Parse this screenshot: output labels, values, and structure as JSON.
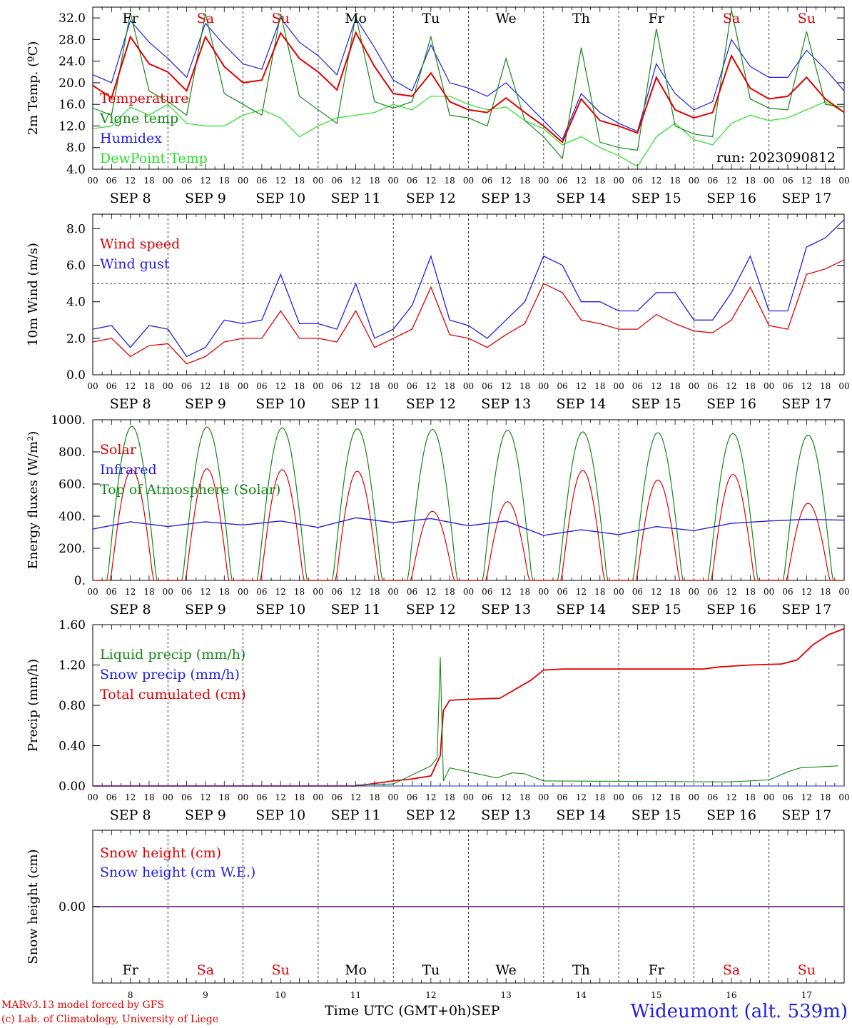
{
  "footer": {
    "model": "MARv3.13 model forced by GFS",
    "credit": "(c) Lab. of Climatology, University of Liege",
    "time_label": "Time UTC (GMT+0h)",
    "month": "SEP",
    "station": "Wideumont (alt. 539m)"
  },
  "colors": {
    "red": "#e00000",
    "green": "#138a13",
    "blue": "#1f1fe6",
    "lightgreen": "#22e022",
    "purple": "#7a2a9a"
  },
  "days": {
    "weekday": [
      "Fr",
      "Sa",
      "Su",
      "Mo",
      "Tu",
      "We",
      "Th",
      "Fr",
      "Sa",
      "Su"
    ],
    "weekend": [
      false,
      true,
      true,
      false,
      false,
      false,
      false,
      false,
      true,
      true
    ],
    "date_labels": [
      "SEP  8",
      "SEP  9",
      "SEP 10",
      "SEP 11",
      "SEP 12",
      "SEP 13",
      "SEP 14",
      "SEP 15",
      "SEP 16",
      "SEP 17"
    ],
    "day_numbers": [
      "8",
      "9",
      "10",
      "11",
      "12",
      "13",
      "14",
      "15",
      "16",
      "17"
    ],
    "hour_ticks": [
      "00",
      "06",
      "12",
      "18"
    ]
  },
  "chart_data": [
    {
      "type": "line",
      "panel": "temperature",
      "ylabel": "2m Temp. (ºC)",
      "ylim": [
        4,
        34
      ],
      "yticks": [
        "4.0",
        "8.0",
        "12.0",
        "16.0",
        "20.0",
        "24.0",
        "28.0",
        "32.0"
      ],
      "run_label": "run: 2023090812",
      "x_unit": "hours since 2023-09-08 00 UTC",
      "series": [
        {
          "name": "Temperature",
          "color": "#e00000",
          "x": [
            0,
            6,
            12,
            18,
            24,
            30,
            36,
            42,
            48,
            54,
            60,
            66,
            72,
            78,
            84,
            90,
            96,
            102,
            108,
            114,
            120,
            126,
            132,
            138,
            144,
            150,
            156,
            162,
            168,
            174,
            180,
            186,
            192,
            198,
            204,
            210,
            216,
            222,
            228,
            234,
            240
          ],
          "values": [
            19.5,
            17.2,
            28.5,
            23.5,
            22.0,
            18.5,
            28.5,
            23.0,
            20.0,
            20.5,
            29.2,
            24.5,
            22.0,
            18.7,
            29.3,
            23.0,
            18.0,
            17.5,
            21.8,
            16.5,
            15.0,
            14.5,
            17.2,
            14.5,
            12.0,
            9.0,
            17.0,
            13.0,
            12.0,
            10.7,
            21.0,
            15.0,
            13.5,
            14.5,
            25.0,
            19.0,
            17.0,
            17.5,
            21.0,
            17.0,
            14.5
          ]
        },
        {
          "name": "Vigne temp",
          "color": "#138a13",
          "x": [
            0,
            6,
            12,
            18,
            24,
            30,
            36,
            42,
            48,
            54,
            60,
            66,
            72,
            78,
            84,
            90,
            96,
            102,
            108,
            114,
            120,
            126,
            132,
            138,
            144,
            150,
            156,
            162,
            168,
            174,
            180,
            186,
            192,
            198,
            204,
            210,
            216,
            222,
            228,
            234,
            240
          ],
          "values": [
            15.3,
            14.0,
            33.0,
            18.5,
            16.5,
            14.0,
            32.8,
            18.0,
            16.0,
            14.0,
            32.8,
            17.5,
            15.0,
            12.5,
            32.5,
            16.5,
            15.3,
            16.5,
            28.5,
            14.0,
            13.5,
            12.0,
            24.5,
            13.0,
            10.0,
            6.0,
            26.5,
            9.0,
            8.0,
            7.5,
            30.0,
            12.0,
            10.5,
            10.0,
            33.5,
            17.0,
            15.3,
            15.0,
            29.5,
            16.0,
            15.5
          ]
        },
        {
          "name": "Humidex",
          "color": "#1f1fe6",
          "x": [
            0,
            6,
            12,
            18,
            24,
            30,
            36,
            42,
            48,
            54,
            60,
            66,
            72,
            78,
            84,
            90,
            96,
            102,
            108,
            114,
            120,
            126,
            132,
            138,
            144,
            150,
            156,
            162,
            168,
            174,
            180,
            186,
            192,
            198,
            204,
            210,
            216,
            222,
            228,
            234,
            240
          ],
          "values": [
            21.5,
            20.0,
            31.5,
            27.5,
            24.5,
            21.0,
            31.0,
            27.0,
            23.5,
            22.5,
            32.0,
            27.5,
            25.0,
            21.5,
            32.0,
            26.5,
            20.5,
            18.5,
            27.0,
            20.0,
            19.0,
            17.5,
            20.0,
            16.5,
            13.0,
            9.5,
            18.0,
            14.5,
            12.5,
            11.0,
            23.5,
            18.0,
            15.0,
            16.5,
            28.0,
            23.0,
            21.0,
            21.0,
            26.0,
            22.5,
            18.5
          ]
        },
        {
          "name": "DewPoint Temp",
          "color": "#22e022",
          "x": [
            0,
            6,
            12,
            18,
            24,
            30,
            36,
            42,
            48,
            54,
            60,
            66,
            72,
            78,
            84,
            90,
            96,
            102,
            108,
            114,
            120,
            126,
            132,
            138,
            144,
            150,
            156,
            162,
            168,
            174,
            180,
            186,
            192,
            198,
            204,
            210,
            216,
            222,
            228,
            234,
            240
          ],
          "values": [
            11.5,
            12.0,
            15.5,
            14.0,
            16.0,
            12.5,
            12.0,
            12.0,
            14.0,
            15.0,
            13.5,
            10.0,
            12.0,
            13.5,
            14.0,
            14.5,
            16.0,
            15.0,
            17.5,
            17.5,
            16.0,
            15.0,
            15.5,
            13.0,
            11.5,
            8.5,
            10.0,
            8.0,
            6.5,
            4.5,
            10.0,
            12.5,
            9.5,
            8.5,
            12.5,
            14.0,
            13.0,
            13.5,
            15.0,
            16.5,
            14.5
          ]
        }
      ]
    },
    {
      "type": "line",
      "panel": "wind",
      "ylabel": "10m Wind (m/s)",
      "ylim": [
        0,
        8.8
      ],
      "yticks": [
        "0.0",
        "2.0",
        "4.0",
        "6.0",
        "8.0"
      ],
      "reference_line": 5.0,
      "series": [
        {
          "name": "Wind speed",
          "color": "#e00000",
          "x": [
            0,
            6,
            12,
            18,
            24,
            30,
            36,
            42,
            48,
            54,
            60,
            66,
            72,
            78,
            84,
            90,
            96,
            102,
            108,
            114,
            120,
            126,
            132,
            138,
            144,
            150,
            156,
            162,
            168,
            174,
            180,
            186,
            192,
            198,
            204,
            210,
            216,
            222,
            228,
            234,
            240
          ],
          "values": [
            1.8,
            2.0,
            1.0,
            1.6,
            1.7,
            0.6,
            1.0,
            1.8,
            2.0,
            2.0,
            3.5,
            2.0,
            2.0,
            1.8,
            3.5,
            1.5,
            2.0,
            2.5,
            4.8,
            2.2,
            2.0,
            1.5,
            2.2,
            2.8,
            5.0,
            4.5,
            3.0,
            2.8,
            2.5,
            2.5,
            3.3,
            2.8,
            2.4,
            2.3,
            3.0,
            4.8,
            2.7,
            2.5,
            5.5,
            5.8,
            6.3
          ]
        },
        {
          "name": "Wind gust",
          "color": "#1f1fe6",
          "x": [
            0,
            6,
            12,
            18,
            24,
            30,
            36,
            42,
            48,
            54,
            60,
            66,
            72,
            78,
            84,
            90,
            96,
            102,
            108,
            114,
            120,
            126,
            132,
            138,
            144,
            150,
            156,
            162,
            168,
            174,
            180,
            186,
            192,
            198,
            204,
            210,
            216,
            222,
            228,
            234,
            240
          ],
          "values": [
            2.5,
            2.7,
            1.5,
            2.7,
            2.5,
            1.0,
            1.5,
            3.0,
            2.8,
            3.0,
            5.5,
            2.8,
            2.8,
            2.5,
            5.0,
            2.0,
            2.5,
            3.8,
            6.5,
            3.0,
            2.7,
            2.0,
            3.0,
            4.0,
            6.5,
            6.0,
            4.0,
            4.0,
            3.5,
            3.5,
            4.5,
            4.5,
            3.0,
            3.0,
            4.5,
            6.5,
            3.5,
            3.5,
            7.0,
            7.5,
            8.5
          ]
        }
      ]
    },
    {
      "type": "line",
      "panel": "energy",
      "ylabel": "Energy fluxes (W/m²)",
      "ylim": [
        0,
        1000
      ],
      "yticks": [
        "0.",
        "200.",
        "400.",
        "600.",
        "800.",
        "1000."
      ],
      "series": [
        {
          "name": "Solar",
          "color": "#e00000",
          "daily_peak": [
            690,
            695,
            690,
            680,
            430,
            490,
            685,
            625,
            660,
            480
          ]
        },
        {
          "name": "Infrared",
          "color": "#1f1fe6",
          "x": [
            0,
            12,
            24,
            36,
            48,
            60,
            72,
            84,
            96,
            108,
            120,
            132,
            144,
            156,
            168,
            180,
            192,
            204,
            216,
            228,
            240
          ],
          "values": [
            320,
            365,
            335,
            365,
            345,
            370,
            330,
            390,
            360,
            385,
            340,
            370,
            280,
            315,
            285,
            335,
            310,
            355,
            370,
            380,
            375
          ]
        },
        {
          "name": "Top of Atmosphere (Solar)",
          "color": "#138a13",
          "daily_peak": [
            960,
            955,
            950,
            945,
            940,
            935,
            925,
            920,
            915,
            905
          ]
        }
      ]
    },
    {
      "type": "line",
      "panel": "precip",
      "ylabel": "Precip (mm/h)",
      "ylim": [
        0,
        1.6
      ],
      "yticks": [
        "0.00",
        "0.40",
        "0.80",
        "1.20",
        "1.60"
      ],
      "series": [
        {
          "name": "Liquid precip (mm/h)",
          "color": "#138a13",
          "x": [
            84,
            96,
            108,
            110,
            111,
            112,
            114,
            129,
            134,
            138,
            144,
            203,
            216,
            222,
            226,
            238
          ],
          "values": [
            0.01,
            0.02,
            0.2,
            0.28,
            1.28,
            0.05,
            0.18,
            0.08,
            0.13,
            0.12,
            0.05,
            0.04,
            0.06,
            0.14,
            0.18,
            0.2
          ]
        },
        {
          "name": "Snow precip (mm/h)",
          "color": "#1f1fe6",
          "x": [
            0,
            240
          ],
          "values": [
            0,
            0
          ]
        },
        {
          "name": "Total cumulated (cm)",
          "color": "#e00000",
          "x": [
            0,
            84,
            96,
            102,
            108,
            111,
            112,
            114,
            120,
            130,
            140,
            144,
            150,
            168,
            180,
            195,
            200,
            210,
            220,
            225,
            230,
            235,
            240
          ],
          "values": [
            0,
            0,
            0.05,
            0.07,
            0.1,
            0.3,
            0.75,
            0.85,
            0.86,
            0.87,
            1.05,
            1.15,
            1.16,
            1.16,
            1.16,
            1.16,
            1.18,
            1.2,
            1.21,
            1.25,
            1.4,
            1.5,
            1.56
          ]
        }
      ]
    },
    {
      "type": "line",
      "panel": "snow",
      "ylabel": "Snow height (cm)",
      "yticks": [
        "0.00"
      ],
      "series": [
        {
          "name": "Snow height (cm)",
          "color": "#e00000",
          "x": [
            0,
            240
          ],
          "values": [
            0,
            0
          ]
        },
        {
          "name": "Snow height (cm W.E.)",
          "color": "#1f1fe6",
          "x": [
            0,
            240
          ],
          "values": [
            0,
            0
          ]
        }
      ]
    }
  ]
}
